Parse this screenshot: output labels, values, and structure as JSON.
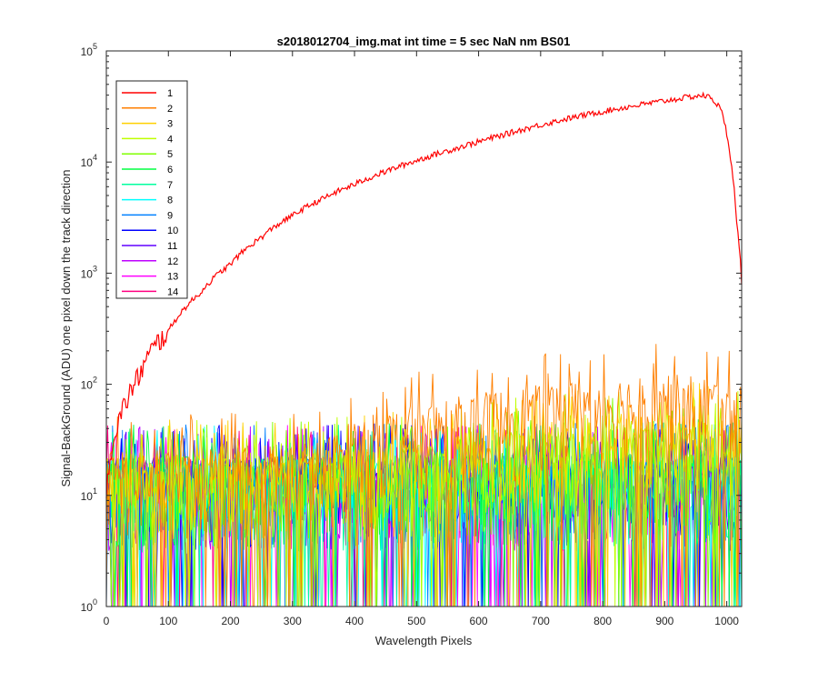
{
  "chart_data": {
    "type": "line",
    "title": "s2018012704_img.mat int time = 5 sec  NaN nm BS01",
    "xlabel": "Wavelength Pixels",
    "ylabel": "Signal-BackGround (ADU) one pixel down the track direction",
    "xlim": [
      0,
      1024
    ],
    "ylim": [
      1,
      100000
    ],
    "yscale": "log",
    "grid": false,
    "legend_position": "top-left",
    "xticks": [
      0,
      100,
      200,
      300,
      400,
      500,
      600,
      700,
      800,
      900,
      1000
    ],
    "xtick_labels": [
      "0",
      "100",
      "200",
      "300",
      "400",
      "500",
      "600",
      "700",
      "800",
      "900",
      "1000"
    ],
    "yticks": [
      1,
      10,
      100,
      1000,
      10000,
      100000
    ],
    "ytick_base": "10",
    "ytick_exponents": [
      "0",
      "1",
      "2",
      "3",
      "4",
      "5"
    ],
    "series": [
      {
        "name": "1",
        "color": "#FF0000",
        "x": [
          0,
          10,
          25,
          50,
          100,
          150,
          200,
          250,
          300,
          350,
          400,
          450,
          500,
          550,
          600,
          650,
          700,
          750,
          800,
          850,
          900,
          940,
          960,
          975,
          990,
          1005,
          1015,
          1024
        ],
        "y": [
          12,
          30,
          55,
          110,
          300,
          650,
          1200,
          2100,
          3300,
          4700,
          6300,
          8200,
          10300,
          12600,
          15200,
          18200,
          21600,
          25000,
          28500,
          32000,
          35500,
          38500,
          39800,
          38000,
          30000,
          12000,
          3000,
          800
        ]
      },
      {
        "name": "2",
        "color": "#FF7F00",
        "x": [
          0,
          200,
          350,
          400,
          500,
          600,
          700,
          800,
          900,
          950,
          1024
        ],
        "y": [
          12,
          13,
          14,
          22,
          30,
          38,
          45,
          52,
          56,
          55,
          45
        ]
      },
      {
        "name": "3",
        "color": "#FFD000",
        "x": [
          0,
          400,
          600,
          800,
          1024
        ],
        "y": [
          11,
          12,
          18,
          25,
          24
        ]
      },
      {
        "name": "4",
        "color": "#BFFF00",
        "x": [
          0,
          400,
          600,
          800,
          1024
        ],
        "y": [
          11,
          12,
          16,
          22,
          22
        ]
      },
      {
        "name": "5",
        "color": "#7FFF00",
        "x": [
          0,
          400,
          600,
          800,
          1024
        ],
        "y": [
          10,
          11,
          14,
          19,
          19
        ]
      },
      {
        "name": "6",
        "color": "#00FF40",
        "x": [
          0,
          1024
        ],
        "y": [
          10,
          12
        ]
      },
      {
        "name": "7",
        "color": "#00FF9F",
        "x": [
          0,
          1024
        ],
        "y": [
          10,
          11
        ]
      },
      {
        "name": "8",
        "color": "#00FFFF",
        "x": [
          0,
          1024
        ],
        "y": [
          10,
          11
        ]
      },
      {
        "name": "9",
        "color": "#0080FF",
        "x": [
          0,
          1024
        ],
        "y": [
          10,
          11
        ]
      },
      {
        "name": "10",
        "color": "#0000FF",
        "x": [
          0,
          1024
        ],
        "y": [
          10,
          11
        ]
      },
      {
        "name": "11",
        "color": "#6000FF",
        "x": [
          0,
          1024
        ],
        "y": [
          10,
          10
        ]
      },
      {
        "name": "12",
        "color": "#BF00FF",
        "x": [
          0,
          1024
        ],
        "y": [
          10,
          10
        ]
      },
      {
        "name": "13",
        "color": "#FF00FF",
        "x": [
          0,
          1024
        ],
        "y": [
          10,
          10
        ]
      },
      {
        "name": "14",
        "color": "#FF0080",
        "x": [
          0,
          1024
        ],
        "y": [
          10,
          10
        ]
      }
    ]
  }
}
